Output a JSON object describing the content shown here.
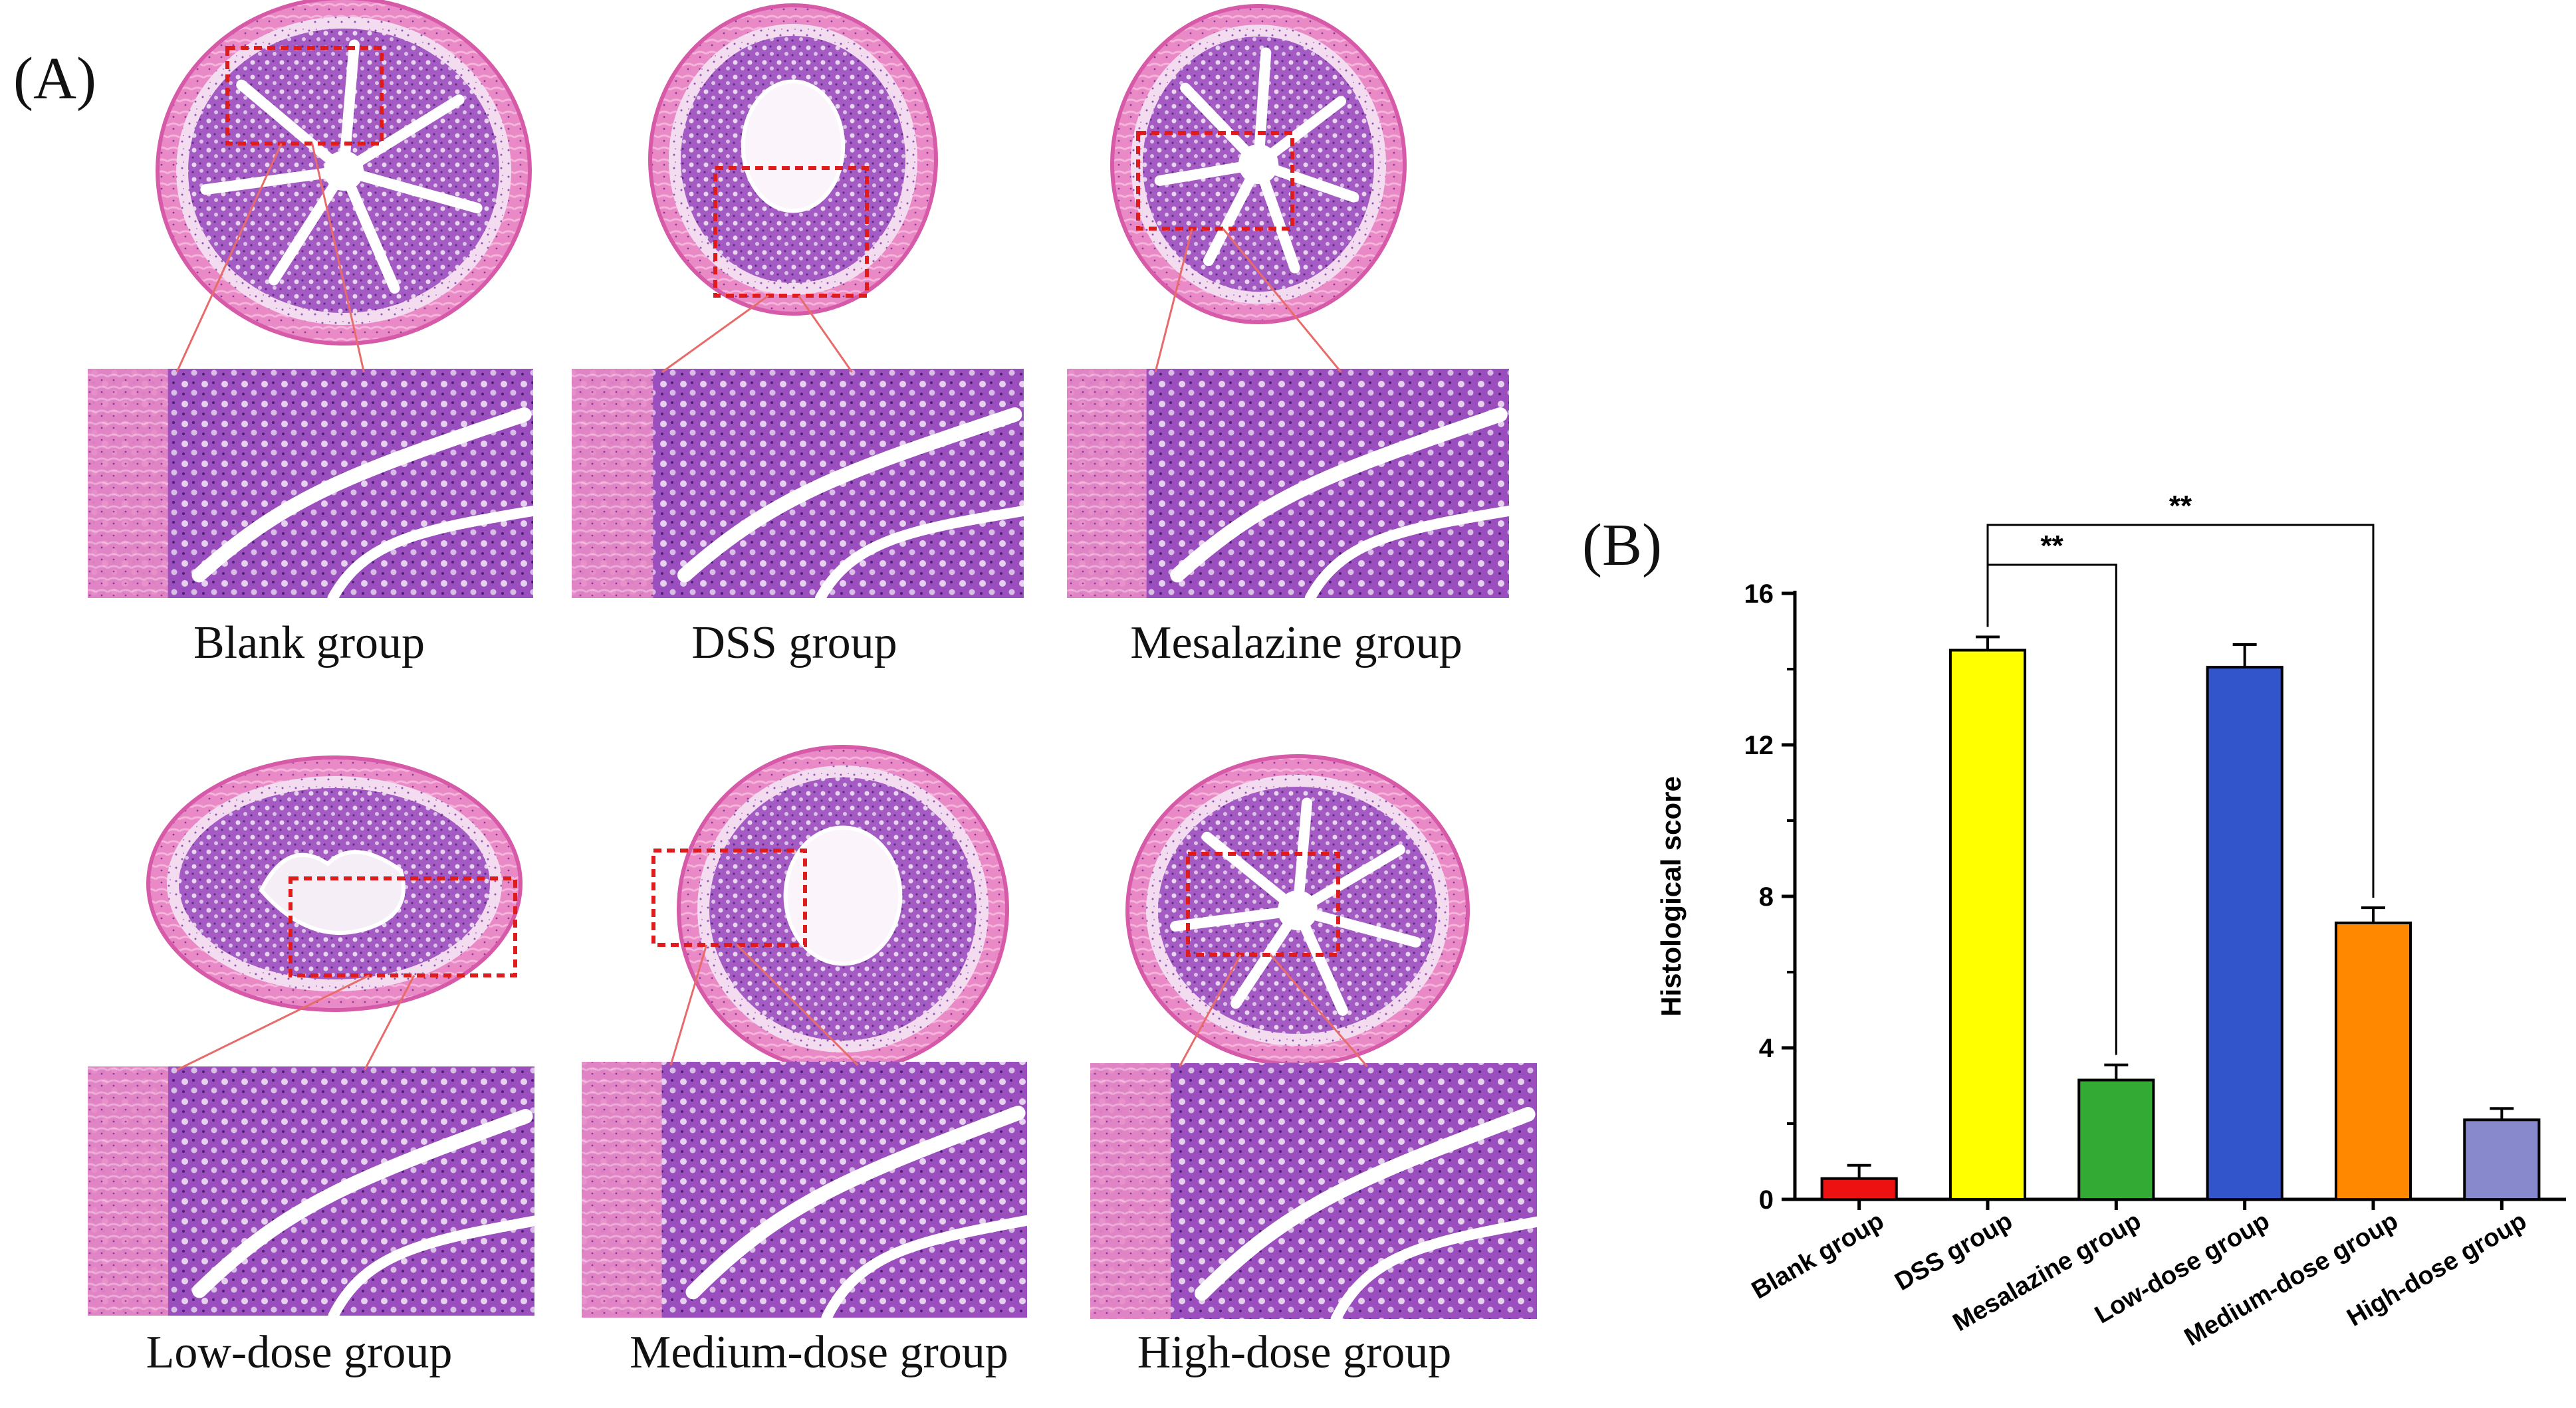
{
  "panel_a": {
    "label": "(A)",
    "groups": [
      {
        "name": "Blank group"
      },
      {
        "name": "DSS group"
      },
      {
        "name": "Mesalazine group"
      },
      {
        "name": "Low-dose group"
      },
      {
        "name": "Medium-dose group"
      },
      {
        "name": "High-dose group"
      }
    ]
  },
  "panel_b": {
    "label": "(B)"
  },
  "chart_data": {
    "type": "bar",
    "title": "",
    "xlabel": "",
    "ylabel": "Histological score",
    "categories": [
      "Blank group",
      "DSS group",
      "Mesalazine group",
      "Low-dose group",
      "Medium-dose group",
      "High-dose group"
    ],
    "values": [
      0.55,
      14.5,
      3.15,
      14.05,
      7.3,
      2.1
    ],
    "errors": [
      0.35,
      0.35,
      0.4,
      0.6,
      0.4,
      0.3
    ],
    "colors": [
      "#ee1111",
      "#ffff00",
      "#33aa33",
      "#3355cc",
      "#ff8800",
      "#8888cc"
    ],
    "ylim": [
      0,
      16
    ],
    "yticks": [
      0,
      4,
      8,
      12,
      16
    ],
    "grid": false,
    "significance": [
      {
        "from": "DSS group",
        "to": "Mesalazine group",
        "label": "**"
      },
      {
        "from": "DSS group",
        "to": "Medium-dose group",
        "label": "**"
      }
    ]
  }
}
